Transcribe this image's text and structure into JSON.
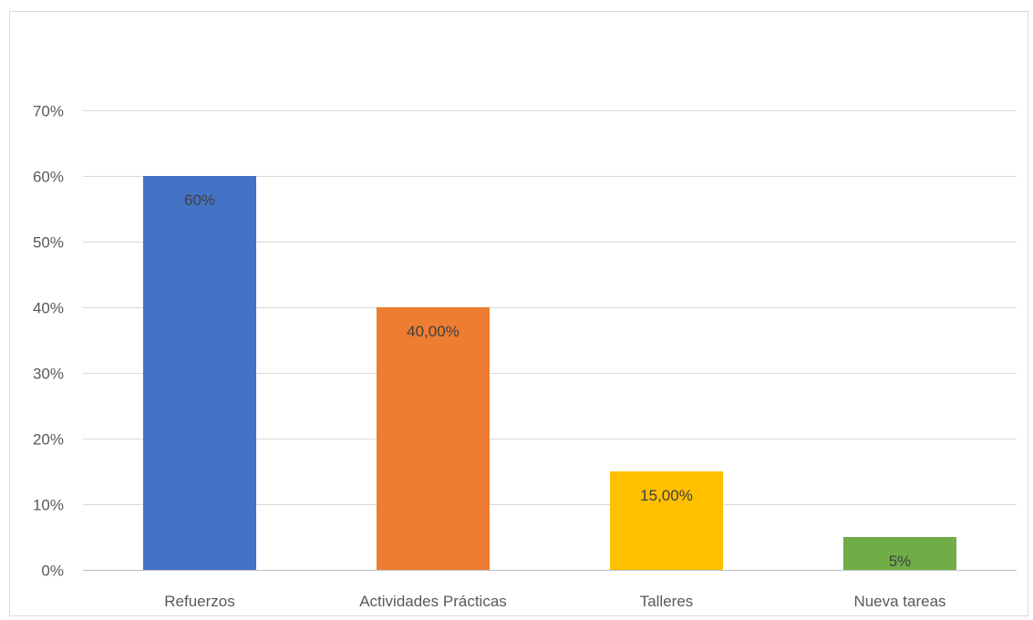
{
  "chart_data": {
    "type": "bar",
    "title": "",
    "xlabel": "",
    "ylabel": "",
    "categories": [
      "Refuerzos",
      "Actividades Prácticas",
      "Talleres",
      "Nueva tareas"
    ],
    "values": [
      0.6,
      0.4,
      0.15,
      0.05
    ],
    "data_labels": [
      "60%",
      "40,00%",
      "15,00%",
      "5%"
    ],
    "colors": [
      "#4472C4",
      "#ED7D31",
      "#FFC000",
      "#70AD47"
    ],
    "ylim": [
      0,
      0.7
    ],
    "yticks": [
      0,
      0.1,
      0.2,
      0.3,
      0.4,
      0.5,
      0.6,
      0.7
    ],
    "ytick_labels": [
      "0%",
      "10%",
      "20%",
      "30%",
      "40%",
      "50%",
      "60%",
      "70%"
    ],
    "grid": true,
    "legend": "none"
  }
}
